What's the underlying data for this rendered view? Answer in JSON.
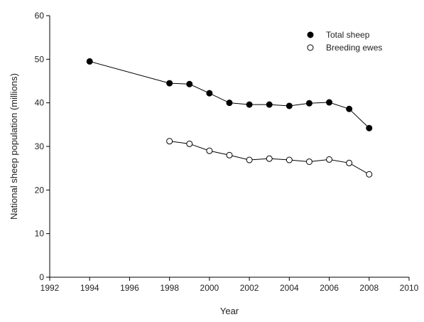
{
  "chart_data": {
    "type": "line",
    "title": "",
    "xlabel": "Year",
    "ylabel": "National sheep population (millions)",
    "xlim": [
      1992,
      2010
    ],
    "ylim": [
      0,
      60
    ],
    "xticks": [
      1992,
      1994,
      1996,
      1998,
      2000,
      2002,
      2004,
      2006,
      2008,
      2010
    ],
    "yticks": [
      0,
      10,
      20,
      30,
      40,
      50,
      60
    ],
    "grid": false,
    "legend_position": "top-right",
    "series": [
      {
        "name": "Total sheep",
        "marker": "filled-circle",
        "color": "#000000",
        "x": [
          1994,
          1998,
          1999,
          2000,
          2001,
          2002,
          2003,
          2004,
          2005,
          2006,
          2007,
          2008
        ],
        "y": [
          49.5,
          44.5,
          44.3,
          42.2,
          40.0,
          39.6,
          39.6,
          39.3,
          39.9,
          40.1,
          38.6,
          34.2
        ]
      },
      {
        "name": "Breeding ewes",
        "marker": "open-circle",
        "color": "#000000",
        "x": [
          1998,
          1999,
          2000,
          2001,
          2002,
          2003,
          2004,
          2005,
          2006,
          2007,
          2008
        ],
        "y": [
          31.2,
          30.6,
          29.0,
          28.0,
          26.9,
          27.2,
          26.9,
          26.5,
          27.0,
          26.2,
          23.6
        ]
      }
    ]
  }
}
